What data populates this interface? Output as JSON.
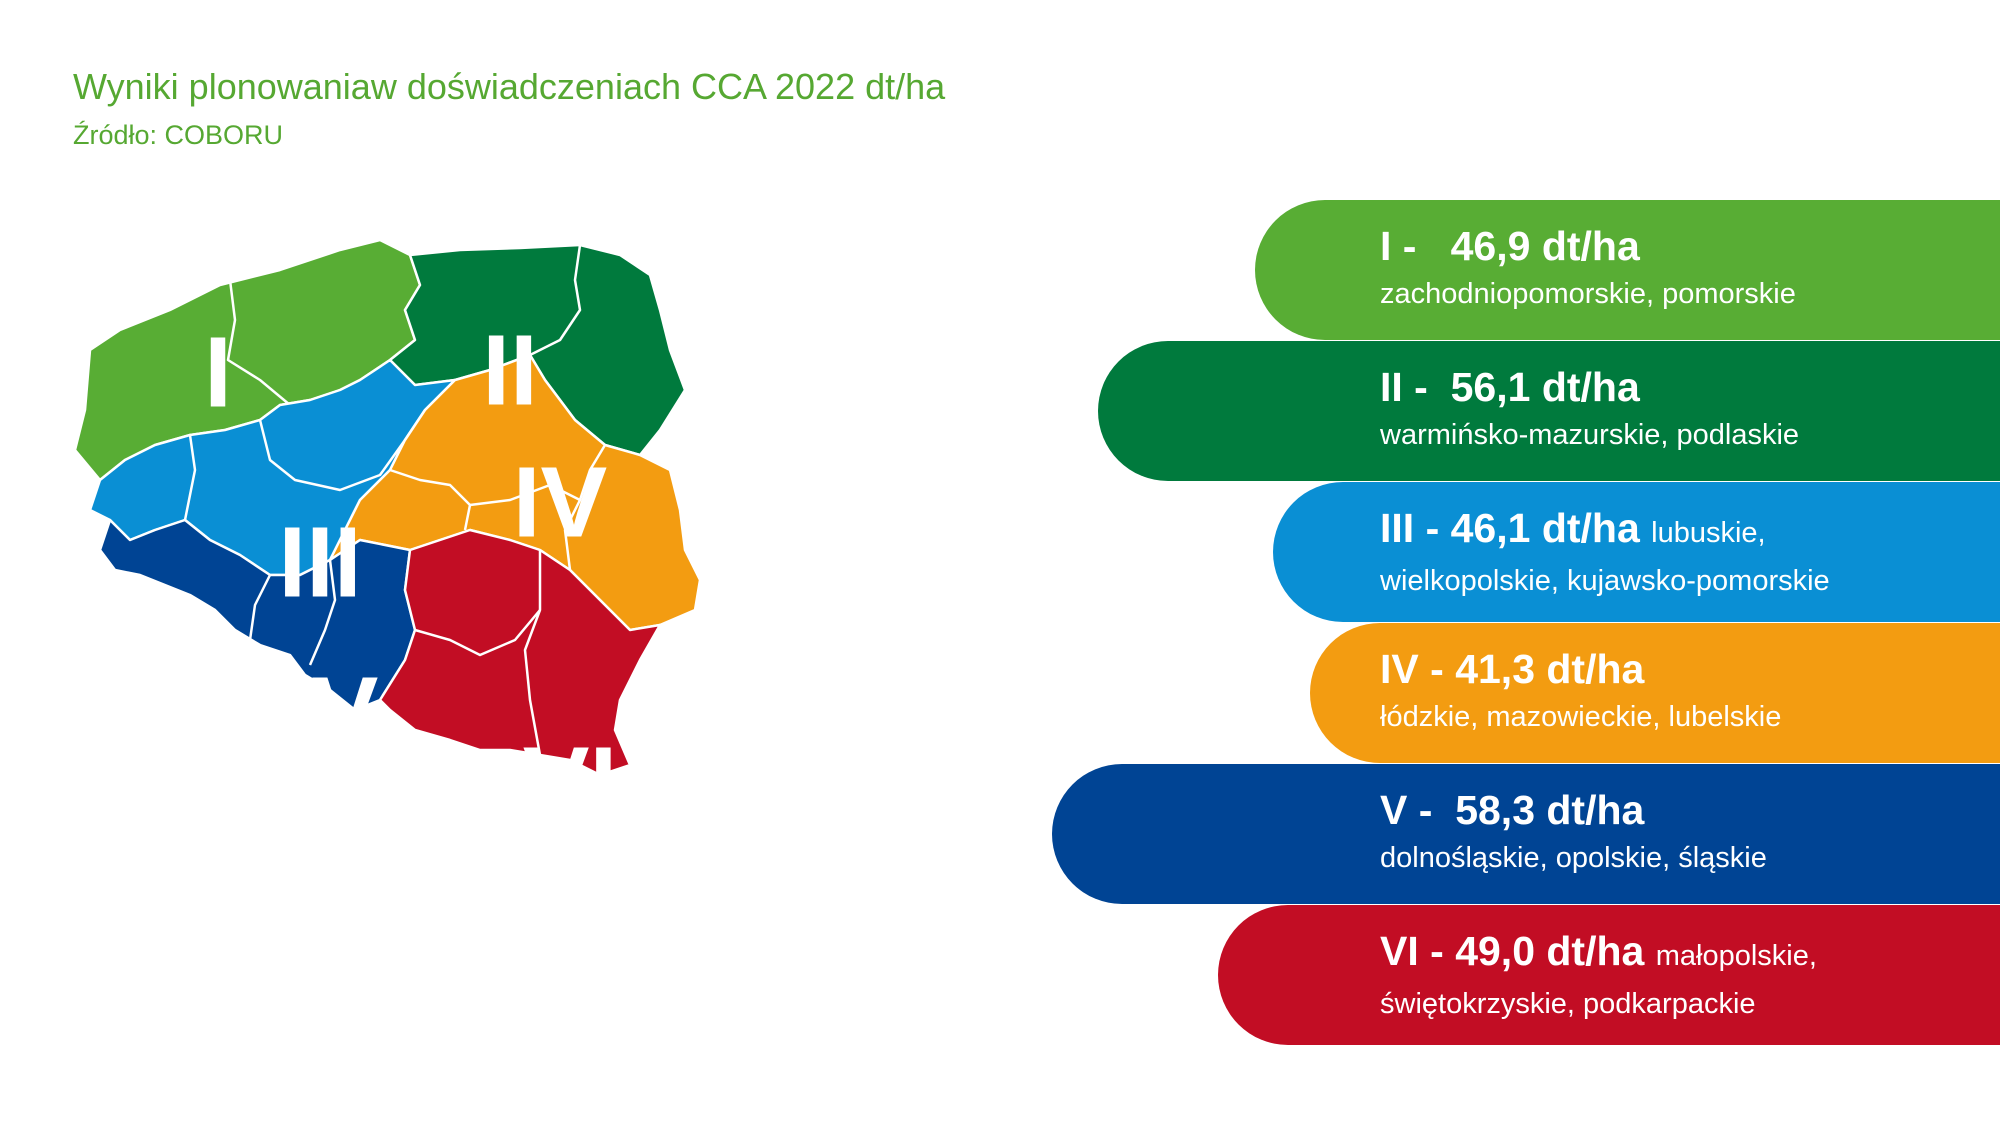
{
  "header": {
    "title": "Wyniki plonowaniaw doświadczeniach CCA 2022 dt/ha",
    "source": "Źródło: COBORU"
  },
  "colors": {
    "title_green": "#56a832",
    "zone_I": "#58ad34",
    "zone_II": "#007a3d",
    "zone_III": "#0a8fd4",
    "zone_IV": "#f39c11",
    "zone_V": "#004494",
    "zone_VI": "#c20d24"
  },
  "map": {
    "zones": [
      {
        "id": "I",
        "numeral": "I"
      },
      {
        "id": "II",
        "numeral": "II"
      },
      {
        "id": "III",
        "numeral": "III"
      },
      {
        "id": "IV",
        "numeral": "IV"
      },
      {
        "id": "V",
        "numeral": "V"
      },
      {
        "id": "VI",
        "numeral": "VI"
      }
    ]
  },
  "legend": [
    {
      "roman": "I -",
      "value": "46,9 dt/ha",
      "inline_regions": "",
      "regions": "zachodniopomorskie, pomorskie"
    },
    {
      "roman": "II -",
      "value": "56,1 dt/ha",
      "inline_regions": "",
      "regions": "warmińsko-mazurskie, podlaskie"
    },
    {
      "roman": "III -",
      "value": "46,1 dt/ha",
      "inline_regions": "lubuskie,",
      "regions": "wielkopolskie, kujawsko-pomorskie"
    },
    {
      "roman": "IV -",
      "value": "41,3 dt/ha",
      "inline_regions": "",
      "regions": "łódzkie, mazowieckie, lubelskie"
    },
    {
      "roman": "V -",
      "value": "58,3 dt/ha",
      "inline_regions": "",
      "regions": "dolnośląskie, opolskie, śląskie"
    },
    {
      "roman": "VI -",
      "value": "49,0 dt/ha",
      "inline_regions": "małopolskie,",
      "regions": "świętokrzyskie, podkarpackie"
    }
  ]
}
